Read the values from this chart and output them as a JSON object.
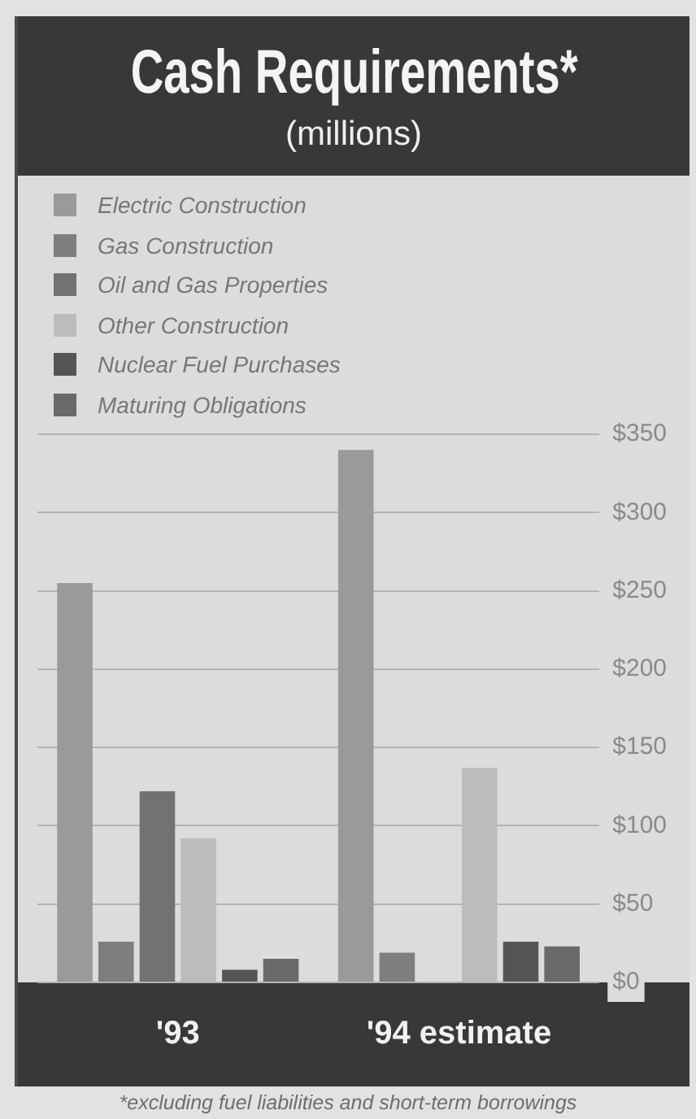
{
  "chart_data": {
    "type": "bar",
    "title": "Cash Requirements*",
    "subtitle": "(millions)",
    "categories": [
      "'93",
      "'94 estimate"
    ],
    "series": [
      {
        "name": "Electric Construction",
        "color": "#9a9a9a",
        "values": [
          255,
          340
        ]
      },
      {
        "name": "Gas Construction",
        "color": "#7e7e7e",
        "values": [
          26,
          19
        ]
      },
      {
        "name": "Oil and Gas Properties",
        "color": "#727272",
        "values": [
          122,
          null
        ]
      },
      {
        "name": "Other Construction",
        "color": "#bcbcbc",
        "values": [
          92,
          137
        ]
      },
      {
        "name": "Nuclear Fuel Purchases",
        "color": "#555555",
        "values": [
          8,
          26
        ]
      },
      {
        "name": "Maturing Obligations",
        "color": "#6a6a6a",
        "values": [
          15,
          23
        ]
      }
    ],
    "ylim": [
      0,
      350
    ],
    "yticks": [
      {
        "value": 0,
        "label": "$0"
      },
      {
        "value": 50,
        "label": "$50"
      },
      {
        "value": 100,
        "label": "$100"
      },
      {
        "value": 150,
        "label": "$150"
      },
      {
        "value": 200,
        "label": "$200"
      },
      {
        "value": 250,
        "label": "$250"
      },
      {
        "value": 300,
        "label": "$300"
      },
      {
        "value": 350,
        "label": "$350"
      }
    ],
    "grid": "y",
    "legend": "top left",
    "annotations": [
      "*excluding fuel liabilities and short-term borrowings"
    ]
  }
}
